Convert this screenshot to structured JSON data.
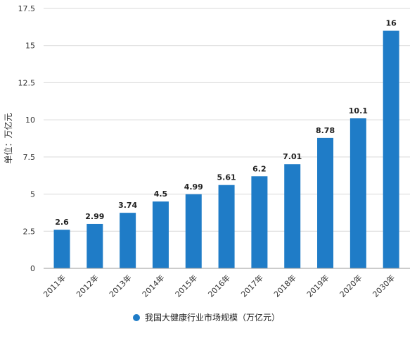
{
  "chart_data": {
    "type": "bar",
    "categories": [
      "2011年",
      "2012年",
      "2013年",
      "2014年",
      "2015年",
      "2016年",
      "2017年",
      "2018年",
      "2019年",
      "2020年",
      "2030年"
    ],
    "series": [
      {
        "name": "我国大健康行业市场规模（万亿元）",
        "values": [
          2.6,
          2.99,
          3.74,
          4.5,
          4.99,
          5.61,
          6.2,
          7.01,
          8.78,
          10.1,
          16
        ],
        "labels": [
          "2.6",
          "2.99",
          "3.74",
          "4.5",
          "4.99",
          "5.61",
          "6.2",
          "7.01",
          "8.78",
          "10.1",
          "16"
        ]
      }
    ],
    "title": "",
    "xlabel": "",
    "ylabel": "单位：万亿元",
    "ylim": [
      0,
      17.5
    ],
    "yticks": [
      0,
      2.5,
      5,
      7.5,
      10,
      12.5,
      15,
      17.5
    ],
    "ytick_labels": [
      "0",
      "2.5",
      "5",
      "7.5",
      "10",
      "12.5",
      "15",
      "17.5"
    ],
    "grid": true,
    "legend": "bottom",
    "bar_color": "#1f7cc7"
  }
}
